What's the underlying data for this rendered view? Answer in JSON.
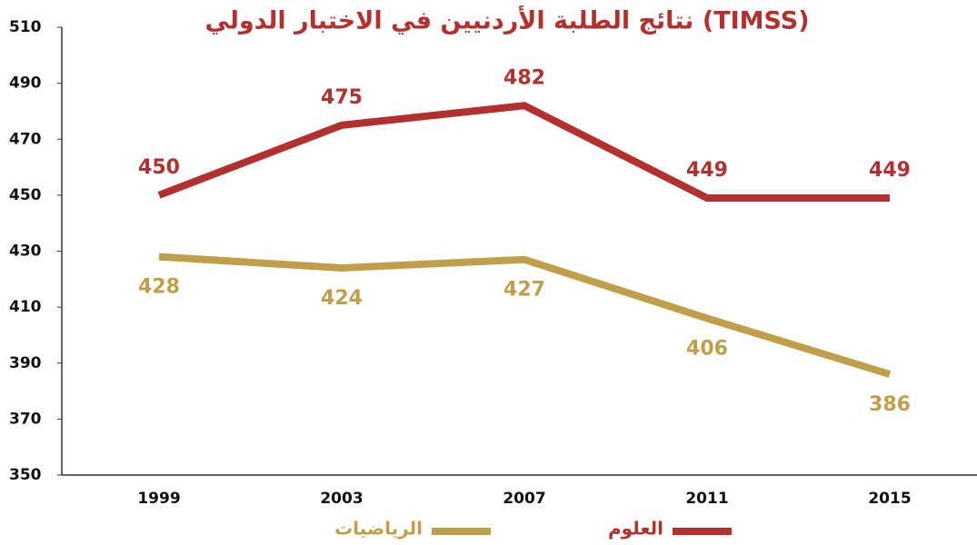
{
  "chart_data": {
    "type": "line",
    "title": "نتائج الطلبة الأردنيين في الاختبار الدولي (TIMSS)",
    "categories": [
      "1999",
      "2003",
      "2007",
      "2011",
      "2015"
    ],
    "series": [
      {
        "name": "العلوم",
        "color": "#b3302e",
        "values": [
          450,
          475,
          482,
          449,
          449
        ]
      },
      {
        "name": "الرياضيات",
        "color": "#bf9f4a",
        "values": [
          428,
          424,
          427,
          406,
          386
        ]
      }
    ],
    "ylim": [
      350,
      510
    ],
    "yticks": [
      350,
      370,
      390,
      410,
      430,
      450,
      470,
      490,
      510
    ]
  }
}
